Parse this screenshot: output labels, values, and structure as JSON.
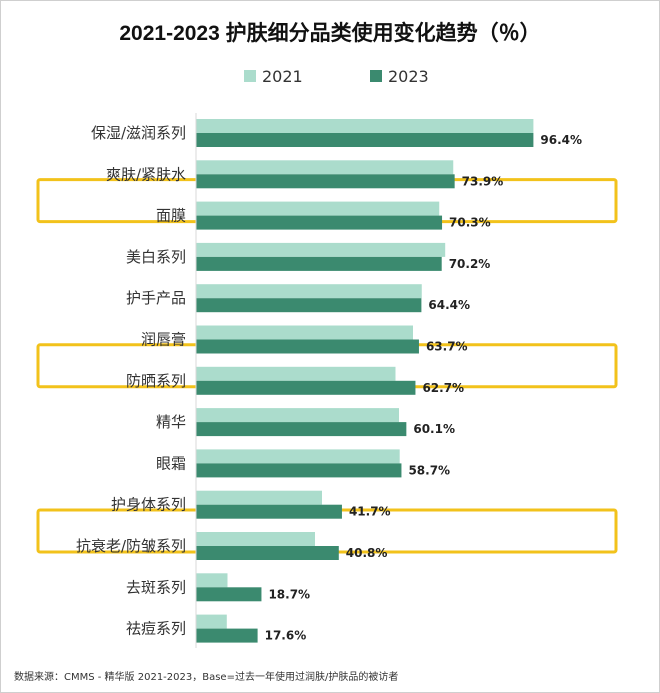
{
  "chart_data": {
    "type": "bar",
    "orientation": "horizontal",
    "title": "2021-2023 护肤细分品类使用变化趋势（％）",
    "categories": [
      "保湿/滋润系列",
      "爽肤/紧肤水",
      "面膜",
      "美白系列",
      "护手产品",
      "润唇膏",
      "防晒系列",
      "精华",
      "眼霜",
      "护身体系列",
      "抗衰老/防皱系列",
      "去斑系列",
      "祛痘系列"
    ],
    "series": [
      {
        "name": "2021",
        "color": "#abdccc",
        "values": [
          96.4,
          73.5,
          69.5,
          71.2,
          64.5,
          62.0,
          57.0,
          58.0,
          58.2,
          36.0,
          34.0,
          9.0,
          8.8
        ]
      },
      {
        "name": "2023",
        "color": "#3b8a6f",
        "values": [
          96.4,
          73.9,
          70.3,
          70.2,
          64.4,
          63.7,
          62.7,
          60.1,
          58.7,
          41.7,
          40.8,
          18.7,
          17.6
        ]
      }
    ],
    "data_labels": [
      "96.4%",
      "73.9%",
      "70.3%",
      "70.2%",
      "64.4%",
      "63.7%",
      "62.7%",
      "60.1%",
      "58.7%",
      "41.7%",
      "40.8%",
      "18.7%",
      "17.6%"
    ],
    "highlighted": [
      "面膜",
      "防晒系列",
      "抗衰老/防皱系列"
    ],
    "highlight_color": "#f2c21b",
    "xlim": [
      0,
      100
    ],
    "legend_position": "top",
    "grid": false
  },
  "footer": "数据来源：CMMS - 精华版 2021-2023，Base=过去一年使用过润肤/护肤品的被访者"
}
